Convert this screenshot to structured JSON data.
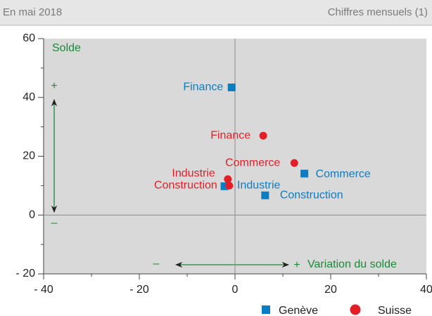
{
  "chart_data": {
    "type": "scatter",
    "header_left": "En mai 2018",
    "header_right": "Chiffres mensuels (1)",
    "annotations": {
      "y_label": "Solde",
      "y_plus": "+",
      "y_minus": "–",
      "x_minus": "–",
      "x_plus": "+",
      "x_label": "Variation du solde"
    },
    "xlim": [
      -40,
      40
    ],
    "ylim": [
      -20,
      60
    ],
    "xticks": [
      {
        "value": -40,
        "label": "- 40"
      },
      {
        "value": -20,
        "label": "- 20"
      },
      0,
      20,
      40
    ],
    "yticks": [
      {
        "value": -20,
        "label": "- 20"
      },
      0,
      20,
      40,
      60
    ],
    "xminorticks": [
      -30,
      -10,
      10,
      30
    ],
    "yminorticks": [
      -10,
      10,
      30,
      50
    ],
    "series": [
      {
        "name": "Genève",
        "color": "#0b7dc3",
        "marker": "square",
        "labels": [
          "Finance",
          "Commerce",
          "Industrie",
          "Construction"
        ],
        "x": [
          -0.7,
          14.5,
          -2.2,
          6.3
        ],
        "values": [
          43.4,
          14.1,
          9.8,
          6.7
        ]
      },
      {
        "name": "Suisse",
        "color": "#e41e26",
        "marker": "circle",
        "labels": [
          "Finance",
          "Commerce",
          "Industrie",
          "Construction"
        ],
        "x": [
          5.9,
          12.4,
          -1.5,
          -1.2
        ],
        "values": [
          27,
          17.7,
          12.2,
          10
        ]
      }
    ]
  }
}
